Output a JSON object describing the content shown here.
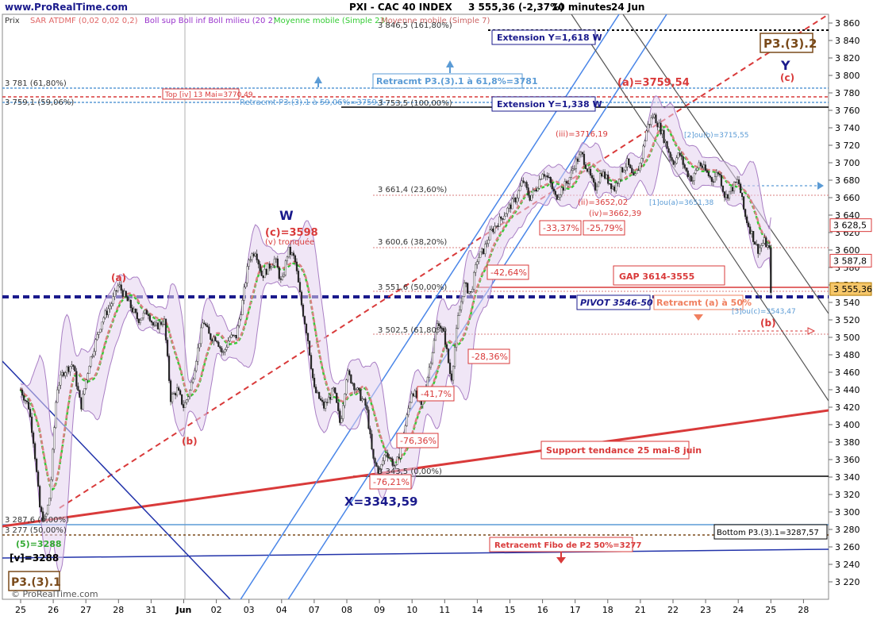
{
  "header": {
    "site": "www.ProRealTime.com",
    "title": "PXI - CAC 40 INDEX",
    "quote": "3 555,36 (-2,37%)",
    "period": "10 minutes",
    "date": "24 Jun"
  },
  "legend": {
    "price_label": "Prix",
    "items": [
      {
        "label": "SAR ATDMF (0,02 0,02 0,2)",
        "color": "#e06666"
      },
      {
        "label": "Boll sup Boll inf Boll milieu (20 2)",
        "color": "#9933cc"
      },
      {
        "label": "Moyenne mobile (Simple 23)",
        "color": "#33cc33"
      },
      {
        "label": "Moyenne mobile (Simple 7)",
        "color": "#cc6666"
      }
    ]
  },
  "watermark": "© ProRealTime.com",
  "colors": {
    "annotation_red": "#d93a3a",
    "navy": "#1a1a8c",
    "fibo_blue": "#5b9bd5",
    "channel_blue": "#4a86e8",
    "channel_black": "#666666",
    "support_red": "#d93a3a",
    "bollinger": "#b48ec9",
    "ma_green": "#33cc33"
  },
  "chart_data": {
    "type": "candlestick",
    "ylim": [
      3200,
      3870
    ],
    "yticks": [
      3220,
      3240,
      3260,
      3280,
      3300,
      3320,
      3340,
      3360,
      3380,
      3400,
      3420,
      3440,
      3460,
      3480,
      3500,
      3520,
      3540,
      3560,
      3580,
      3600,
      3620,
      3640,
      3660,
      3680,
      3700,
      3720,
      3740,
      3760,
      3780,
      3800,
      3820,
      3840,
      3860
    ],
    "xticks": [
      "25",
      "26",
      "27",
      "28",
      "31",
      "Jun",
      "02",
      "03",
      "04",
      "07",
      "08",
      "09",
      "10",
      "11",
      "14",
      "15",
      "16",
      "17",
      "18",
      "21",
      "22",
      "23",
      "24",
      "25",
      "28"
    ],
    "price_path": [
      [
        0.0,
        3440
      ],
      [
        0.25,
        3420
      ],
      [
        0.4,
        3380
      ],
      [
        0.6,
        3300
      ],
      [
        0.75,
        3290
      ],
      [
        0.9,
        3320
      ],
      [
        1.1,
        3440
      ],
      [
        1.3,
        3460
      ],
      [
        1.6,
        3470
      ],
      [
        1.85,
        3420
      ],
      [
        2.1,
        3470
      ],
      [
        2.5,
        3520
      ],
      [
        2.8,
        3540
      ],
      [
        3.0,
        3560
      ],
      [
        3.3,
        3540
      ],
      [
        3.6,
        3520
      ],
      [
        3.9,
        3530
      ],
      [
        4.1,
        3510
      ],
      [
        4.4,
        3520
      ],
      [
        4.6,
        3430
      ],
      [
        4.8,
        3440
      ],
      [
        5.0,
        3420
      ],
      [
        5.2,
        3440
      ],
      [
        5.4,
        3480
      ],
      [
        5.6,
        3520
      ],
      [
        5.8,
        3500
      ],
      [
        6.0,
        3500
      ],
      [
        6.2,
        3480
      ],
      [
        6.4,
        3500
      ],
      [
        6.6,
        3500
      ],
      [
        6.8,
        3540
      ],
      [
        7.0,
        3590
      ],
      [
        7.2,
        3600
      ],
      [
        7.4,
        3570
      ],
      [
        7.6,
        3580
      ],
      [
        7.8,
        3590
      ],
      [
        8.0,
        3560
      ],
      [
        8.2,
        3600
      ],
      [
        8.4,
        3590
      ],
      [
        8.6,
        3540
      ],
      [
        8.8,
        3500
      ],
      [
        9.0,
        3440
      ],
      [
        9.3,
        3420
      ],
      [
        9.6,
        3440
      ],
      [
        9.8,
        3400
      ],
      [
        10.0,
        3460
      ],
      [
        10.3,
        3440
      ],
      [
        10.6,
        3420
      ],
      [
        10.8,
        3360
      ],
      [
        11.0,
        3345
      ],
      [
        11.2,
        3370
      ],
      [
        11.5,
        3350
      ],
      [
        11.8,
        3400
      ],
      [
        12.0,
        3440
      ],
      [
        12.3,
        3420
      ],
      [
        12.6,
        3480
      ],
      [
        12.8,
        3520
      ],
      [
        13.0,
        3500
      ],
      [
        13.2,
        3450
      ],
      [
        13.4,
        3520
      ],
      [
        13.6,
        3560
      ],
      [
        13.8,
        3550
      ],
      [
        14.0,
        3590
      ],
      [
        14.2,
        3600
      ],
      [
        14.4,
        3620
      ],
      [
        14.6,
        3630
      ],
      [
        14.8,
        3640
      ],
      [
        15.0,
        3650
      ],
      [
        15.2,
        3660
      ],
      [
        15.4,
        3680
      ],
      [
        15.6,
        3660
      ],
      [
        15.8,
        3670
      ],
      [
        16.0,
        3690
      ],
      [
        16.2,
        3680
      ],
      [
        16.4,
        3660
      ],
      [
        16.6,
        3670
      ],
      [
        16.8,
        3680
      ],
      [
        17.0,
        3700
      ],
      [
        17.2,
        3710
      ],
      [
        17.4,
        3690
      ],
      [
        17.6,
        3670
      ],
      [
        17.8,
        3690
      ],
      [
        18.0,
        3680
      ],
      [
        18.2,
        3670
      ],
      [
        18.4,
        3690
      ],
      [
        18.6,
        3700
      ],
      [
        18.8,
        3680
      ],
      [
        19.0,
        3700
      ],
      [
        19.2,
        3740
      ],
      [
        19.4,
        3755
      ],
      [
        19.6,
        3740
      ],
      [
        19.8,
        3720
      ],
      [
        20.0,
        3700
      ],
      [
        20.2,
        3710
      ],
      [
        20.4,
        3690
      ],
      [
        20.6,
        3680
      ],
      [
        20.8,
        3700
      ],
      [
        21.0,
        3690
      ],
      [
        21.2,
        3680
      ],
      [
        21.4,
        3690
      ],
      [
        21.6,
        3660
      ],
      [
        21.8,
        3670
      ],
      [
        22.0,
        3680
      ],
      [
        22.2,
        3640
      ],
      [
        22.4,
        3620
      ],
      [
        22.6,
        3600
      ],
      [
        22.8,
        3610
      ],
      [
        22.95,
        3600
      ],
      [
        23.0,
        3555
      ]
    ],
    "annotations": [
      {
        "text": "3 846,5 (161,80%)",
        "value": 3846.5
      },
      {
        "text": "Extension Y=1,618 W",
        "value": 3846.5
      },
      {
        "text": "P3.(3).2"
      },
      {
        "text": "Y"
      },
      {
        "text": "(c)"
      },
      {
        "text": "(a)=3759,54",
        "value": 3759.54
      },
      {
        "text": "Retracmt P3.(3).1 à 61,8%=3781",
        "value": 3781
      },
      {
        "text": "3 781 (61,80%)",
        "value": 3781
      },
      {
        "text": "3 759,1 (59,06%)",
        "value": 3759.1
      },
      {
        "text": "Top [iv] 13 Mai=3770,49",
        "value": 3770.49
      },
      {
        "text": "Retracmt P3.(3).1 à 59,06%=3759,1"
      },
      {
        "text": "3 753,5 (100,00%)",
        "value": 3753.5
      },
      {
        "text": "Extension Y=1,338 W",
        "value": 3760
      },
      {
        "text": "(iii)=3716,19",
        "value": 3716.19
      },
      {
        "text": "[2]ou(b)=3715,55",
        "value": 3715.55
      },
      {
        "text": "3 661,4 (23,60%)",
        "value": 3661.4
      },
      {
        "text": "(ii)=3652,02"
      },
      {
        "text": "(iv)=3662,39",
        "value": 3662.39
      },
      {
        "text": "[1]ou(a)=3651,38"
      },
      {
        "text": "-33,37%"
      },
      {
        "text": "-25,79%"
      },
      {
        "text": "3 600,6 (38,20%)",
        "value": 3600.6
      },
      {
        "text": "-42,64%"
      },
      {
        "text": "GAP 3614-3555"
      },
      {
        "text": "3 551,6 (50,00%)",
        "value": 3551.6
      },
      {
        "text": "PIVOT 3546-50"
      },
      {
        "text": "Retracmt (a) à 50%"
      },
      {
        "text": "[3]ou(c)=3543,47",
        "value": 3543.47
      },
      {
        "text": "(b)"
      },
      {
        "text": "3 502,5 (61,80%)",
        "value": 3502.5
      },
      {
        "text": "-28,36%"
      },
      {
        "text": "-41,7%"
      },
      {
        "text": "-76,36%"
      },
      {
        "text": "-76,21%"
      },
      {
        "text": "3 343,5 (0,00%)",
        "value": 3343.5
      },
      {
        "text": "X=3343,59",
        "value": 3343.59
      },
      {
        "text": "Support tendance 25 mai-8 juin"
      },
      {
        "text": "Bottom P3.(3).1=3287,57",
        "value": 3287.57
      },
      {
        "text": "Retracemt Fibo de P2 50%=3277",
        "value": 3277
      },
      {
        "text": "W"
      },
      {
        "text": "(c)=3598",
        "value": 3598
      },
      {
        "text": "(v) tronquée"
      },
      {
        "text": "(a)"
      },
      {
        "text": "(b)"
      },
      {
        "text": "3 287,6 (0,00%)",
        "value": 3287.6
      },
      {
        "text": "3 277 (50,00%)",
        "value": 3277
      },
      {
        "text": "(5)=3288",
        "value": 3288
      },
      {
        "text": "[v]=3288",
        "value": 3288
      },
      {
        "text": "P3.(3).1"
      }
    ],
    "price_tags": [
      {
        "text": "3 628,5",
        "value": 3628.5
      },
      {
        "text": "3 587,8",
        "value": 3587.8
      },
      {
        "text": "3 555,36",
        "value": 3555.36
      }
    ]
  }
}
